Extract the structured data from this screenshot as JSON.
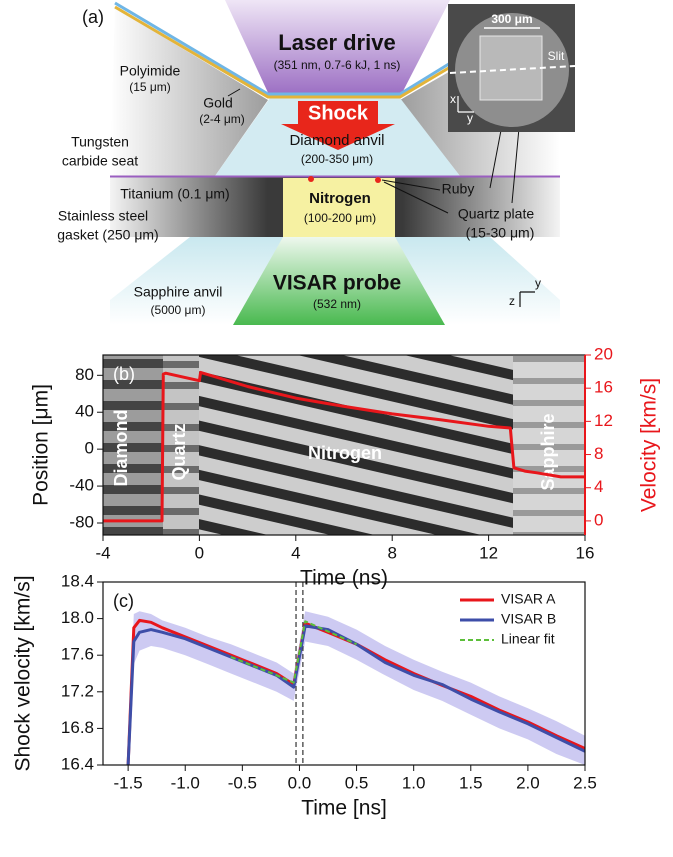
{
  "diagram": {
    "panel_label": "(a)",
    "laser_title": "Laser drive",
    "laser_sub": "(351 nm, 0.7-6 kJ, 1 ns)",
    "polyimide": "Polyimide",
    "polyimide_sub": "(15 μm)",
    "gold": "Gold",
    "gold_sub": "(2-4 μm)",
    "shock": "Shock",
    "diamond": "Diamond anvil",
    "diamond_sub": "(200-350 μm)",
    "tungsten_1": "Tungsten",
    "tungsten_2": "carbide seat",
    "titanium": "Titanium (0.1 μm)",
    "steel_1": "Stainless steel",
    "steel_2": "gasket (250 μm)",
    "nitrogen": "Nitrogen",
    "nitrogen_sub": "(100-200 μm)",
    "ruby": "Ruby",
    "quartz": "Quartz plate",
    "quartz_sub": "(15-30 μm)",
    "visar": "VISAR probe",
    "visar_sub": "(532 nm)",
    "sapphire": "Sapphire anvil",
    "sapphire_sub": "(5000 μm)",
    "axis_z": "z",
    "axis_y": "y",
    "inset_scale": "300 μm",
    "inset_slit": "Slit",
    "inset_x": "x",
    "inset_y": "y"
  },
  "chart_data": [
    {
      "type": "line",
      "panel_label": "(b)",
      "xlabel": "Time (ns)",
      "ylabel": "Position [μm]",
      "y2label": "Velocity [km/s]",
      "y2color": "#e8161b",
      "xlim": [
        -4,
        16
      ],
      "xticks": [
        -4,
        0,
        4,
        8,
        12,
        16
      ],
      "ylim": [
        -93,
        102
      ],
      "yticks": [
        -80,
        -40,
        0,
        40,
        80
      ],
      "y2lim": [
        -1.7,
        20
      ],
      "y2ticks": [
        0,
        4,
        8,
        12,
        16,
        20
      ],
      "regions": [
        "Diamond",
        "Quartz",
        "Nitrogen",
        "Sapphire"
      ],
      "x": [
        -4,
        -1.55,
        -1.5,
        -1.4,
        0,
        0.05,
        2,
        4,
        6,
        8,
        10,
        12,
        12.9,
        13.05,
        13.5,
        14,
        15,
        16
      ],
      "series": [
        {
          "color": "#e8161b",
          "axis": "y2",
          "values": [
            0,
            0,
            17.7,
            17.8,
            16.9,
            17.9,
            16.2,
            14.8,
            13.8,
            12.9,
            12.2,
            11.4,
            11.2,
            6.4,
            6.0,
            5.8,
            5.3,
            5.3
          ]
        }
      ]
    },
    {
      "type": "line",
      "panel_label": "(c)",
      "xlabel": "Time [ns]",
      "ylabel": "Shock velocity [km/s]",
      "xlim": [
        -1.72,
        2.5
      ],
      "xticks": [
        -1.5,
        {
          "value": -1,
          "label": "-1.0"
        },
        -0.5,
        {
          "value": 0,
          "label": "0.0"
        },
        0.5,
        {
          "value": 1,
          "label": "1.0"
        },
        1.5,
        {
          "value": 2,
          "label": "2.0"
        },
        2.5
      ],
      "ylim": [
        16.4,
        18.4
      ],
      "yticks": [
        16.4,
        16.8,
        17.2,
        17.6,
        {
          "value": 18,
          "label": "18.0"
        },
        18.4
      ],
      "legend": "upper right",
      "vlines": [
        -0.03,
        0.03
      ],
      "x": [
        -1.5,
        -1.45,
        -1.4,
        -1.3,
        -1.2,
        -1.0,
        -0.8,
        -0.6,
        -0.4,
        -0.2,
        -0.05,
        0.05,
        0.25,
        0.5,
        0.75,
        1.0,
        1.25,
        1.5,
        1.75,
        2.0,
        2.25,
        2.5
      ],
      "band": {
        "color": "#bcb8ee",
        "upper": [
          16.4,
          18.05,
          18.08,
          18.05,
          17.98,
          17.9,
          17.8,
          17.72,
          17.62,
          17.52,
          17.4,
          18.08,
          18.02,
          17.88,
          17.7,
          17.55,
          17.42,
          17.3,
          17.15,
          17.02,
          16.88,
          16.72
        ],
        "lower": [
          16.4,
          17.5,
          17.65,
          17.7,
          17.68,
          17.6,
          17.5,
          17.4,
          17.3,
          17.2,
          17.1,
          17.75,
          17.7,
          17.55,
          17.38,
          17.22,
          17.1,
          16.95,
          16.8,
          16.68,
          16.52,
          16.4
        ]
      },
      "series": [
        {
          "name": "VISAR A",
          "color": "#e8161b",
          "values": [
            16.4,
            17.9,
            17.98,
            17.96,
            17.9,
            17.8,
            17.7,
            17.6,
            17.5,
            17.4,
            17.28,
            17.95,
            17.85,
            17.72,
            17.55,
            17.4,
            17.27,
            17.15,
            17.0,
            16.87,
            16.72,
            16.58
          ]
        },
        {
          "name": "VISAR B",
          "color": "#3e4ea8",
          "values": [
            16.4,
            17.75,
            17.85,
            17.88,
            17.85,
            17.78,
            17.68,
            17.58,
            17.48,
            17.38,
            17.25,
            17.92,
            17.88,
            17.72,
            17.52,
            17.38,
            17.28,
            17.12,
            16.98,
            16.85,
            16.7,
            16.55
          ]
        },
        {
          "name": "Linear fit",
          "color": "#5cbf3a",
          "dashed": true,
          "values": [
            null,
            null,
            null,
            null,
            null,
            null,
            null,
            17.58,
            17.48,
            17.38,
            17.3,
            17.97,
            17.86,
            17.72,
            null,
            null,
            null,
            null,
            null,
            null,
            null,
            null
          ]
        }
      ]
    }
  ]
}
